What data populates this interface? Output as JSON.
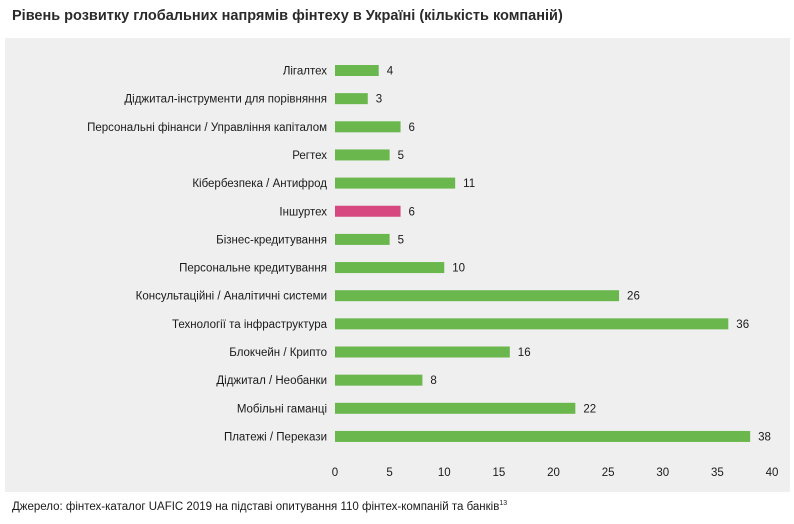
{
  "title": "Рівень розвитку глобальних напрямів фінтеху в Україні (кількість компаній)",
  "source": {
    "text": "Джерело: фінтех-каталог UAFIC 2019 на підставі опитування 110 фінтех-компаній та банків",
    "footnote": "13"
  },
  "colors": {
    "default_bar": "#6ab74e",
    "highlight_bar": "#d6487f",
    "plot_background": "#efefef"
  },
  "chart_data": {
    "type": "bar",
    "orientation": "horizontal",
    "categories": [
      "Лігалтех",
      "Діджитал-інструменти для порівняння",
      "Персональні фінанси / Управління капіталом",
      "Регтех",
      "Кібербезпека / Антифрод",
      "Іншуртех",
      "Бізнес-кредитування",
      "Персональне кредитування",
      "Консультаційні / Аналітичні системи",
      "Технології та інфраструктура",
      "Блокчейн  / Крипто",
      "Діджитал / Необанки",
      "Мобільні гаманці",
      "Платежі / Перекази"
    ],
    "values": [
      4,
      3,
      6,
      5,
      11,
      6,
      5,
      10,
      26,
      36,
      16,
      8,
      22,
      38
    ],
    "highlighted": [
      "Іншуртех"
    ],
    "xlim": [
      0,
      40
    ],
    "xticks": [
      "0",
      "5",
      "10",
      "15",
      "20",
      "25",
      "30",
      "35",
      "40"
    ],
    "xlabel": "",
    "ylabel": "",
    "grid": false,
    "legend": "none",
    "data_labels": true
  }
}
